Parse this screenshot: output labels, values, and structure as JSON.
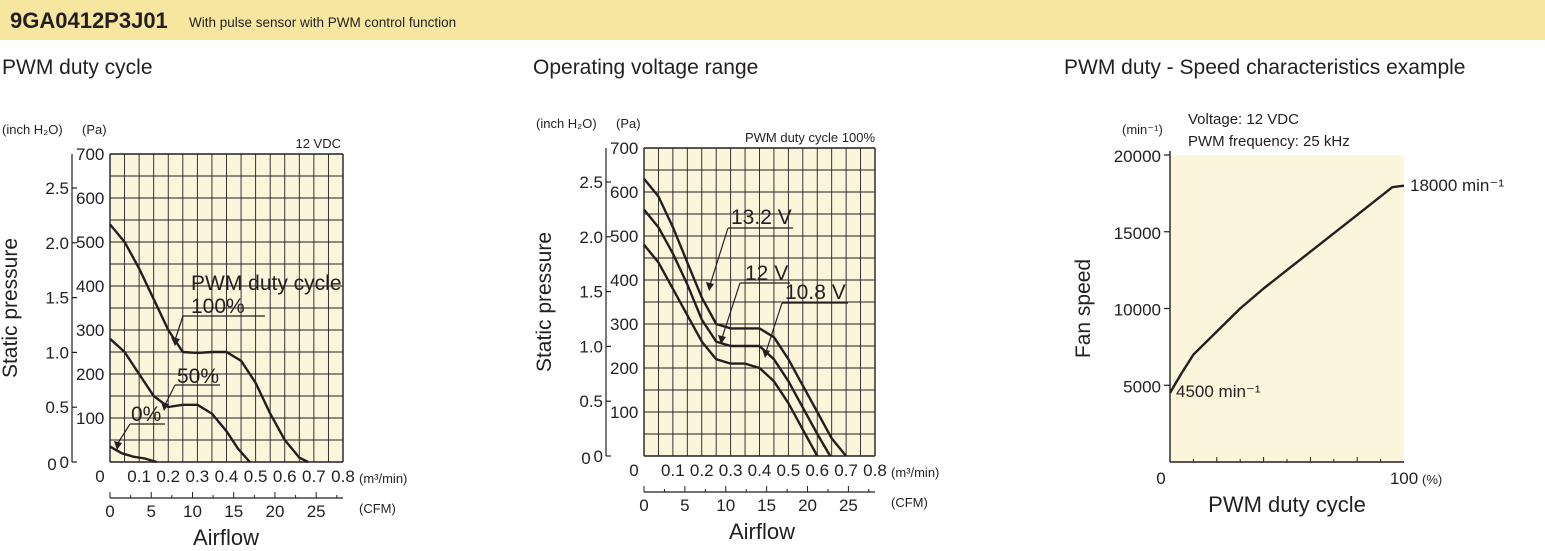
{
  "header": {
    "model": "9GA0412P3J01",
    "description": "With pulse sensor with PWM control function",
    "background_color": "#f7e6a0"
  },
  "plot_background_color": "#fbf5dc",
  "chart_data": [
    {
      "type": "line",
      "title": "PWM duty cycle",
      "condition": "12 VDC",
      "xlabel": "Airflow",
      "ylabel": "Static pressure",
      "x_unit_primary": "(m³/min)",
      "x_unit_secondary": "(CFM)",
      "y_unit_primary": "(Pa)",
      "y_unit_secondary": "(inch H₂O)",
      "xlim": [
        0,
        0.8
      ],
      "ylim": [
        0,
        700
      ],
      "x_ticks": [
        "0",
        "0.1",
        "0.2",
        "0.3",
        "0.4",
        "0.5",
        "0.6",
        "0.7",
        "0.8"
      ],
      "x_secondary_ticks": [
        "0",
        "5",
        "10",
        "15",
        "20",
        "25"
      ],
      "y_ticks": [
        "0",
        "100",
        "200",
        "300",
        "400",
        "500",
        "600",
        "700"
      ],
      "y_secondary_ticks": [
        "0",
        "0.5",
        "1.0",
        "1.5",
        "2.0",
        "2.5"
      ],
      "grid": true,
      "series": [
        {
          "name": "100%",
          "x": [
            0,
            0.05,
            0.1,
            0.15,
            0.2,
            0.25,
            0.3,
            0.35,
            0.4,
            0.45,
            0.5,
            0.55,
            0.6,
            0.65,
            0.68
          ],
          "y": [
            540,
            500,
            440,
            370,
            300,
            250,
            248,
            250,
            250,
            230,
            180,
            110,
            50,
            10,
            0
          ]
        },
        {
          "name": "50%",
          "x": [
            0,
            0.05,
            0.1,
            0.15,
            0.2,
            0.25,
            0.3,
            0.35,
            0.4,
            0.44,
            0.48
          ],
          "y": [
            280,
            250,
            200,
            150,
            125,
            130,
            130,
            110,
            70,
            30,
            0
          ]
        },
        {
          "name": "0%",
          "x": [
            0,
            0.04,
            0.08,
            0.12,
            0.16
          ],
          "y": [
            35,
            20,
            12,
            8,
            0
          ]
        }
      ],
      "annotations": [
        "PWM duty cycle",
        "100%",
        "50%",
        "0%"
      ]
    },
    {
      "type": "line",
      "title": "Operating voltage range",
      "condition": "PWM duty cycle 100%",
      "xlabel": "Airflow",
      "ylabel": "Static pressure",
      "x_unit_primary": "(m³/min)",
      "x_unit_secondary": "(CFM)",
      "y_unit_primary": "(Pa)",
      "y_unit_secondary": "(inch H₂O)",
      "xlim": [
        0,
        0.8
      ],
      "ylim": [
        0,
        700
      ],
      "x_ticks": [
        "0",
        "0.1",
        "0.2",
        "0.3",
        "0.4",
        "0.5",
        "0.6",
        "0.7",
        "0.8"
      ],
      "x_secondary_ticks": [
        "0",
        "5",
        "10",
        "15",
        "20",
        "25"
      ],
      "y_ticks": [
        "0",
        "100",
        "200",
        "300",
        "400",
        "500",
        "600",
        "700"
      ],
      "y_secondary_ticks": [
        "0",
        "0.5",
        "1.0",
        "1.5",
        "2.0",
        "2.5"
      ],
      "grid": true,
      "series": [
        {
          "name": "13.2 V",
          "x": [
            0,
            0.05,
            0.1,
            0.15,
            0.2,
            0.25,
            0.3,
            0.35,
            0.4,
            0.45,
            0.5,
            0.55,
            0.6,
            0.65,
            0.7
          ],
          "y": [
            630,
            590,
            520,
            440,
            360,
            300,
            290,
            290,
            290,
            270,
            220,
            160,
            100,
            40,
            0
          ]
        },
        {
          "name": "12 V",
          "x": [
            0,
            0.05,
            0.1,
            0.15,
            0.2,
            0.25,
            0.3,
            0.35,
            0.4,
            0.45,
            0.5,
            0.55,
            0.6,
            0.645
          ],
          "y": [
            560,
            520,
            460,
            390,
            310,
            260,
            250,
            250,
            250,
            220,
            170,
            110,
            50,
            0
          ]
        },
        {
          "name": "10.8 V",
          "x": [
            0,
            0.05,
            0.1,
            0.15,
            0.2,
            0.25,
            0.3,
            0.35,
            0.4,
            0.45,
            0.5,
            0.55,
            0.6
          ],
          "y": [
            480,
            440,
            380,
            320,
            260,
            220,
            210,
            210,
            200,
            170,
            120,
            60,
            0
          ]
        }
      ],
      "annotations": [
        "13.2 V",
        "12 V",
        "10.8 V"
      ]
    },
    {
      "type": "line",
      "title": "PWM duty - Speed characteristics example",
      "notes": [
        "Voltage: 12 VDC",
        "PWM frequency: 25 kHz"
      ],
      "xlabel": "PWM duty cycle",
      "ylabel": "Fan speed",
      "x_unit": "(%)",
      "y_unit": "(min⁻¹)",
      "xlim": [
        0,
        100
      ],
      "ylim": [
        0,
        20000
      ],
      "x_ticks": [
        "0",
        "100"
      ],
      "y_ticks": [
        "5000",
        "10000",
        "15000",
        "20000"
      ],
      "grid": false,
      "series": [
        {
          "name": "",
          "x": [
            0,
            5,
            10,
            20,
            30,
            40,
            50,
            60,
            70,
            80,
            90,
            95,
            100
          ],
          "y": [
            4500,
            5800,
            7000,
            8500,
            10000,
            11300,
            12500,
            13700,
            14900,
            16100,
            17300,
            17900,
            18000
          ]
        }
      ],
      "annotations": [
        "18000 min⁻¹",
        "4500 min⁻¹"
      ],
      "annotation_values": {
        "max": "18000 min⁻¹",
        "min": "4500 min⁻¹"
      }
    }
  ]
}
